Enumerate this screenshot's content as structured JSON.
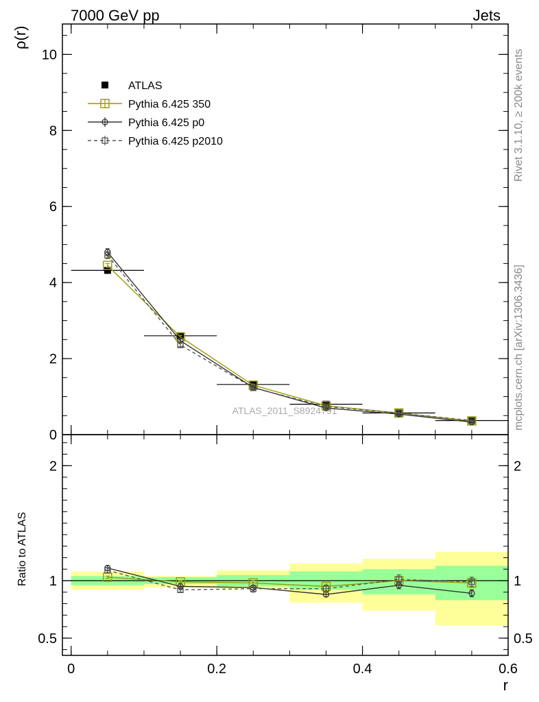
{
  "header": {
    "left_title": "7000 GeV pp",
    "right_title": "Jets"
  },
  "side_text": {
    "rivet": "Rivet 3.1.10, ≥ 200k events",
    "mcplots": "mcplots.cern.ch [arXiv:1306.3436]"
  },
  "watermark": "ATLAS_2011_S8924791",
  "colors": {
    "atlas": "#000000",
    "p350": "#999900",
    "p0": "#333333",
    "p2010": "#555555",
    "band_inner": "#99ff99",
    "band_outer": "#ffff99"
  },
  "chart_data": [
    {
      "type": "line",
      "panel": "main",
      "ylabel": "ρ(r)",
      "xlim": [
        -0.012,
        0.6
      ],
      "ylim": [
        0,
        10.8
      ],
      "x_ticks": [
        0,
        0.2,
        0.4,
        0.6
      ],
      "y_ticks": [
        0,
        2,
        4,
        6,
        8,
        10
      ],
      "y_tick_labels": [
        "0",
        "2",
        "4",
        "6",
        "8",
        "10"
      ],
      "x": [
        0.05,
        0.15,
        0.25,
        0.35,
        0.45,
        0.55
      ],
      "x_bins": [
        [
          0,
          0.1
        ],
        [
          0.1,
          0.2
        ],
        [
          0.2,
          0.3
        ],
        [
          0.3,
          0.4
        ],
        [
          0.4,
          0.5
        ],
        [
          0.5,
          0.6
        ]
      ],
      "legend_position": "top-left",
      "series": [
        {
          "name": "ATLAS",
          "values": [
            4.32,
            2.6,
            1.32,
            0.8,
            0.57,
            0.37
          ],
          "errors": [
            0.08,
            0.05,
            0.03,
            0.03,
            0.03,
            0.03
          ]
        },
        {
          "name": "Pythia 6.425 350",
          "values": [
            4.45,
            2.57,
            1.3,
            0.76,
            0.57,
            0.36
          ],
          "errors": [
            0.05,
            0.04,
            0.03,
            0.02,
            0.02,
            0.02
          ]
        },
        {
          "name": "Pythia 6.425 p0",
          "values": [
            4.8,
            2.47,
            1.24,
            0.7,
            0.54,
            0.33
          ],
          "errors": [
            0.09,
            0.05,
            0.03,
            0.02,
            0.02,
            0.02
          ]
        },
        {
          "name": "Pythia 6.425 p2010",
          "values": [
            4.72,
            2.36,
            1.23,
            0.74,
            0.57,
            0.37
          ],
          "errors": [
            0.09,
            0.05,
            0.03,
            0.02,
            0.02,
            0.02
          ]
        }
      ]
    },
    {
      "type": "line",
      "panel": "ratio",
      "ylabel": "Ratio to ATLAS",
      "xlabel": "r",
      "xlim": [
        -0.012,
        0.6
      ],
      "ylim": [
        0.35,
        2.27
      ],
      "x_ticks": [
        0,
        0.2,
        0.4,
        0.6
      ],
      "x_tick_labels": [
        "0",
        "0.2",
        "0.4",
        "0.6"
      ],
      "y_ticks": [
        0.5,
        1,
        2
      ],
      "y_tick_labels": [
        "0.5",
        "1",
        "2"
      ],
      "x": [
        0.05,
        0.15,
        0.25,
        0.35,
        0.45,
        0.55
      ],
      "bands": {
        "inner": [
          [
            0.96,
            1.04
          ],
          [
            0.97,
            1.03
          ],
          [
            0.95,
            1.05
          ],
          [
            0.92,
            1.08
          ],
          [
            0.88,
            1.1
          ],
          [
            0.83,
            1.13
          ]
        ],
        "outer": [
          [
            0.92,
            1.08
          ],
          [
            0.94,
            1.04
          ],
          [
            0.93,
            1.09
          ],
          [
            0.81,
            1.15
          ],
          [
            0.74,
            1.19
          ],
          [
            0.61,
            1.25
          ]
        ]
      },
      "series": [
        {
          "name": "Pythia 6.425 350",
          "values": [
            1.03,
            0.99,
            0.98,
            0.95,
            1.0,
            0.98
          ],
          "errors": [
            0.01,
            0.01,
            0.02,
            0.02,
            0.03,
            0.04
          ]
        },
        {
          "name": "Pythia 6.425 p0",
          "values": [
            1.11,
            0.95,
            0.94,
            0.88,
            0.96,
            0.89
          ],
          "errors": [
            0.02,
            0.02,
            0.02,
            0.02,
            0.03,
            0.03
          ]
        },
        {
          "name": "Pythia 6.425 p2010",
          "values": [
            1.09,
            0.92,
            0.93,
            0.93,
            1.01,
            0.99
          ],
          "errors": [
            0.02,
            0.02,
            0.03,
            0.03,
            0.04,
            0.04
          ]
        }
      ]
    }
  ]
}
